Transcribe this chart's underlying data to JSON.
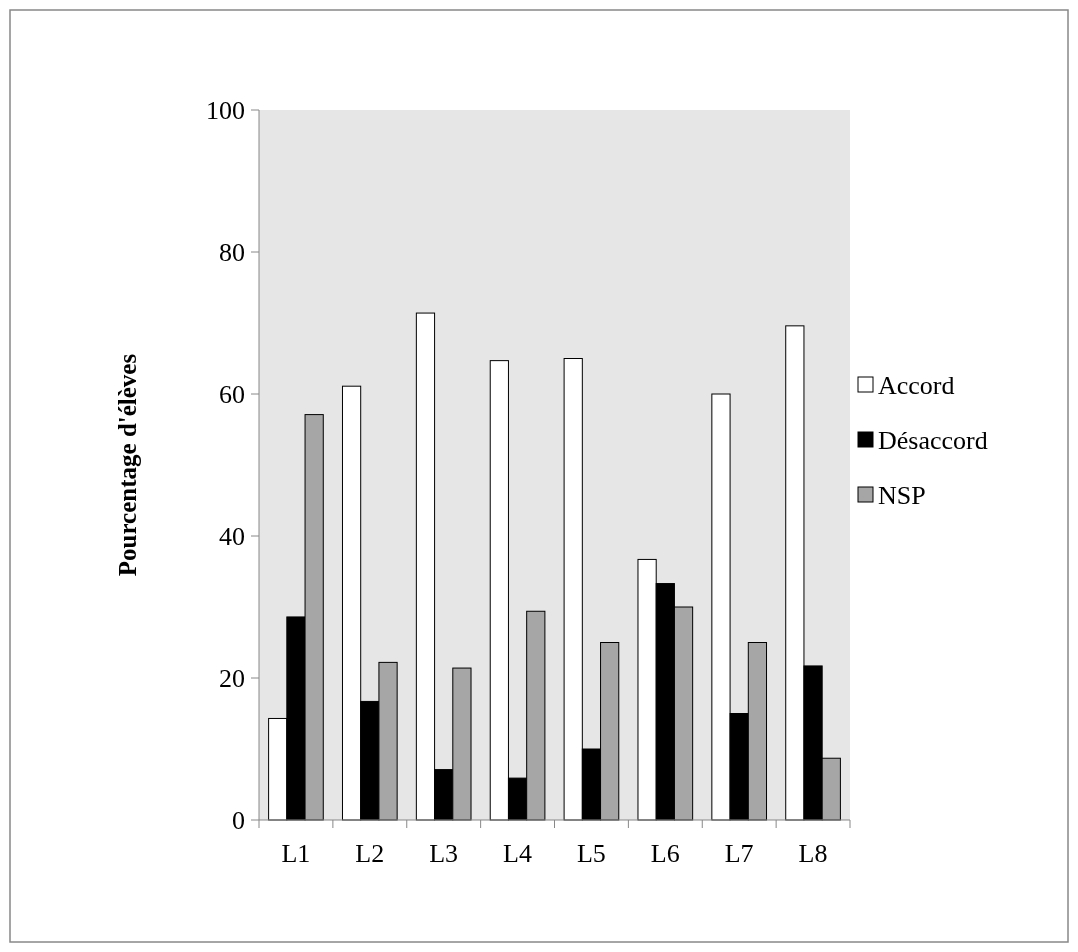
{
  "chart_data": {
    "type": "bar",
    "ylabel": "Pourcentage d'élèves",
    "categories": [
      "L1",
      "L2",
      "L3",
      "L4",
      "L5",
      "L6",
      "L7",
      "L8"
    ],
    "series": [
      {
        "name": "Accord",
        "color": "#ffffff",
        "values": [
          14.3,
          61.1,
          71.4,
          64.7,
          65,
          36.7,
          60,
          69.6
        ]
      },
      {
        "name": "Désaccord",
        "color": "#000000",
        "values": [
          28.6,
          16.7,
          7.1,
          5.9,
          10,
          33.3,
          15,
          21.7
        ]
      },
      {
        "name": "NSP",
        "color": "#a6a6a6",
        "values": [
          57.1,
          22.2,
          21.4,
          29.4,
          25,
          30,
          25,
          8.7
        ]
      }
    ],
    "ylim": [
      0,
      100
    ],
    "yticks": [
      0,
      20,
      40,
      60,
      80,
      100
    ],
    "grid": false,
    "legend": "right"
  }
}
